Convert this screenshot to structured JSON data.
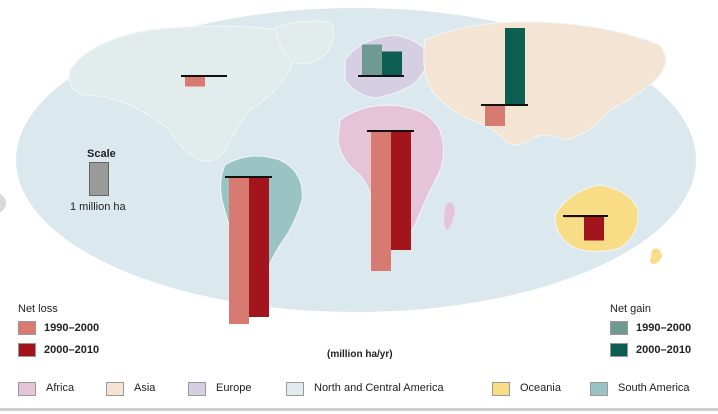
{
  "colors": {
    "ocean": "#dbe8ee",
    "land": "#e3ecec",
    "loss_1990_2000": "#d67a72",
    "loss_2000_2010": "#a2151d",
    "gain_1990_2000": "#6e9a91",
    "gain_2000_2010": "#0b5e51",
    "scale_bar": "#9a9a9a",
    "africa": "#e6c4d8",
    "asia": "#f4e4d4",
    "europe": "#d6cfe3",
    "north_central_america": "#e3ecec",
    "oceania": "#f8dc86",
    "south_america": "#9ac3c3"
  },
  "scale": {
    "title": "Scale",
    "label": "1 million ha"
  },
  "net_loss": {
    "title": "Net loss",
    "items": [
      "1990–2000",
      "2000–2010"
    ]
  },
  "net_gain": {
    "title": "Net gain",
    "items": [
      "1990–2000",
      "2000–2010"
    ]
  },
  "unit_label": "(million ha/yr)",
  "region_legend": [
    {
      "label": "Africa",
      "color": "#e6c4d8"
    },
    {
      "label": "Asia",
      "color": "#f4e4d4"
    },
    {
      "label": "Europe",
      "color": "#d6cfe3"
    },
    {
      "label": "North and Central America",
      "color": "#e3ecec"
    },
    {
      "label": "Oceania",
      "color": "#f8dc86"
    },
    {
      "label": "South America",
      "color": "#9ac3c3"
    }
  ],
  "chart_data": {
    "type": "bar",
    "ylabel": "(million ha/yr)",
    "series": [
      {
        "name": "Net loss 1990–2000"
      },
      {
        "name": "Net loss 2000–2010"
      },
      {
        "name": "Net gain 1990–2000"
      },
      {
        "name": "Net gain 2000–2010"
      }
    ],
    "regions": [
      {
        "region": "North and Central America",
        "v1990_2000": -0.3,
        "v2000_2010": -0.01
      },
      {
        "region": "Europe",
        "v1990_2000": 0.9,
        "v2000_2010": 0.7
      },
      {
        "region": "Asia",
        "v1990_2000": -0.6,
        "v2000_2010": 2.2
      },
      {
        "region": "Africa",
        "v1990_2000": -4.0,
        "v2000_2010": -3.4
      },
      {
        "region": "South America",
        "v1990_2000": -4.2,
        "v2000_2010": -4.0
      },
      {
        "region": "Oceania",
        "v1990_2000": -0.04,
        "v2000_2010": -0.7
      }
    ]
  }
}
